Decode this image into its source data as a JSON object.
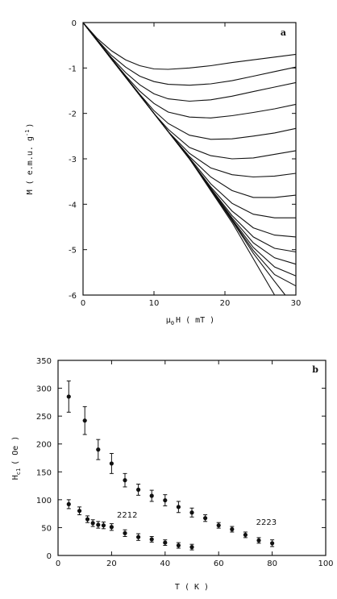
{
  "chart_data": [
    {
      "type": "line",
      "panel_letter": "a",
      "ylabel": "M ( e.m.u. g",
      "ylabel_sup": "-1",
      "ylabel_end": ")",
      "xlabel_main": "μ",
      "xlabel_sub": "0",
      "xlabel_rest": "H  ( mT )",
      "xlim": [
        0,
        30
      ],
      "ylim": [
        -6,
        0
      ],
      "x_ticks": [
        0,
        10,
        20,
        30
      ],
      "y_ticks": [
        0,
        -1,
        -2,
        -3,
        -4,
        -5,
        -6
      ],
      "x_tick_labels": [
        "0",
        "10",
        "20",
        "30"
      ],
      "y_tick_labels": [
        "0",
        "-1",
        "-2",
        "-3",
        "-4",
        "-5",
        "-6"
      ],
      "grid": false,
      "series": [
        {
          "x": [
            0,
            2,
            4,
            6,
            8,
            10,
            12,
            15,
            18,
            21,
            24,
            27,
            30
          ],
          "y": [
            0,
            -0.35,
            -0.62,
            -0.82,
            -0.95,
            -1.02,
            -1.03,
            -1.0,
            -0.95,
            -0.88,
            -0.82,
            -0.76,
            -0.7
          ]
        },
        {
          "x": [
            0,
            2,
            4,
            6,
            8,
            10,
            12,
            15,
            18,
            21,
            24,
            27,
            30
          ],
          "y": [
            0,
            -0.38,
            -0.72,
            -0.98,
            -1.18,
            -1.3,
            -1.36,
            -1.38,
            -1.35,
            -1.28,
            -1.18,
            -1.08,
            -0.98
          ]
        },
        {
          "x": [
            0,
            2,
            4,
            6,
            8,
            10,
            12,
            15,
            18,
            21,
            24,
            27,
            30
          ],
          "y": [
            0,
            -0.39,
            -0.77,
            -1.1,
            -1.37,
            -1.57,
            -1.68,
            -1.73,
            -1.7,
            -1.62,
            -1.52,
            -1.42,
            -1.32
          ]
        },
        {
          "x": [
            0,
            2,
            4,
            6,
            8,
            10,
            12,
            15,
            18,
            21,
            24,
            27,
            30
          ],
          "y": [
            0,
            -0.4,
            -0.79,
            -1.17,
            -1.51,
            -1.78,
            -1.97,
            -2.08,
            -2.1,
            -2.05,
            -1.98,
            -1.9,
            -1.8
          ]
        },
        {
          "x": [
            0,
            2,
            4,
            6,
            8,
            10,
            12,
            15,
            18,
            21,
            24,
            27,
            30
          ],
          "y": [
            0,
            -0.4,
            -0.8,
            -1.19,
            -1.58,
            -1.94,
            -2.22,
            -2.48,
            -2.57,
            -2.56,
            -2.5,
            -2.43,
            -2.33
          ]
        },
        {
          "x": [
            0,
            2,
            4,
            6,
            8,
            10,
            12,
            15,
            18,
            21,
            24,
            27,
            30
          ],
          "y": [
            0,
            -0.4,
            -0.8,
            -1.2,
            -1.6,
            -2.0,
            -2.35,
            -2.75,
            -2.93,
            -3.0,
            -2.98,
            -2.9,
            -2.82
          ]
        },
        {
          "x": [
            0,
            2,
            4,
            6,
            8,
            10,
            12,
            15,
            18,
            21,
            24,
            27,
            30
          ],
          "y": [
            0,
            -0.4,
            -0.8,
            -1.2,
            -1.6,
            -2.0,
            -2.4,
            -2.88,
            -3.2,
            -3.35,
            -3.4,
            -3.38,
            -3.32
          ]
        },
        {
          "x": [
            0,
            2,
            4,
            6,
            8,
            10,
            12,
            15,
            18,
            21,
            24,
            27,
            30
          ],
          "y": [
            0,
            -0.4,
            -0.8,
            -1.2,
            -1.6,
            -2.0,
            -2.4,
            -2.95,
            -3.4,
            -3.7,
            -3.85,
            -3.85,
            -3.8
          ]
        },
        {
          "x": [
            0,
            2,
            4,
            6,
            8,
            10,
            12,
            15,
            18,
            21,
            24,
            27,
            30
          ],
          "y": [
            0,
            -0.4,
            -0.8,
            -1.2,
            -1.6,
            -2.0,
            -2.4,
            -2.98,
            -3.55,
            -3.98,
            -4.22,
            -4.3,
            -4.3
          ]
        },
        {
          "x": [
            0,
            2,
            4,
            6,
            8,
            10,
            12,
            15,
            18,
            21,
            24,
            27,
            30
          ],
          "y": [
            0,
            -0.4,
            -0.8,
            -1.2,
            -1.6,
            -2.0,
            -2.4,
            -3.0,
            -3.62,
            -4.15,
            -4.52,
            -4.68,
            -4.72
          ]
        },
        {
          "x": [
            0,
            2,
            4,
            6,
            8,
            10,
            12,
            15,
            18,
            21,
            24,
            27,
            30
          ],
          "y": [
            0,
            -0.4,
            -0.8,
            -1.2,
            -1.6,
            -2.0,
            -2.4,
            -3.0,
            -3.65,
            -4.25,
            -4.72,
            -4.97,
            -5.05
          ]
        },
        {
          "x": [
            0,
            2,
            4,
            6,
            8,
            10,
            12,
            15,
            18,
            21,
            24,
            27,
            30
          ],
          "y": [
            0,
            -0.4,
            -0.8,
            -1.2,
            -1.6,
            -2.0,
            -2.4,
            -3.0,
            -3.66,
            -4.3,
            -4.85,
            -5.18,
            -5.32
          ]
        },
        {
          "x": [
            0,
            2,
            4,
            6,
            8,
            10,
            12,
            15,
            18,
            21,
            24,
            27,
            30
          ],
          "y": [
            0,
            -0.4,
            -0.8,
            -1.2,
            -1.6,
            -2.0,
            -2.4,
            -3.0,
            -3.67,
            -4.33,
            -4.95,
            -5.38,
            -5.58
          ]
        },
        {
          "x": [
            0,
            2,
            4,
            6,
            8,
            10,
            12,
            15,
            18,
            21,
            24,
            27,
            30
          ],
          "y": [
            0,
            -0.4,
            -0.8,
            -1.2,
            -1.6,
            -2.0,
            -2.4,
            -3.0,
            -3.68,
            -4.35,
            -5.02,
            -5.55,
            -5.8
          ]
        },
        {
          "x": [
            0,
            2,
            4,
            6,
            8,
            10,
            12,
            15,
            18,
            21,
            24,
            27,
            28.5
          ],
          "y": [
            0,
            -0.4,
            -0.8,
            -1.2,
            -1.6,
            -2.0,
            -2.4,
            -3.0,
            -3.68,
            -4.36,
            -5.08,
            -5.7,
            -6.0
          ]
        },
        {
          "x": [
            0,
            2,
            4,
            6,
            8,
            10,
            12,
            15,
            18,
            21,
            24,
            27
          ],
          "y": [
            0,
            -0.4,
            -0.8,
            -1.2,
            -1.6,
            -2.0,
            -2.4,
            -3.0,
            -3.7,
            -4.4,
            -5.2,
            -6.0
          ]
        }
      ]
    },
    {
      "type": "scatter",
      "panel_letter": "b",
      "ylabel_main": "H",
      "ylabel_sub": "c1",
      "ylabel_rest": "( Oe )",
      "xlabel": "T  ( K )",
      "xlim": [
        0,
        100
      ],
      "ylim": [
        0,
        350
      ],
      "x_ticks": [
        0,
        20,
        40,
        60,
        80,
        100
      ],
      "y_ticks": [
        0,
        50,
        100,
        150,
        200,
        250,
        300,
        350
      ],
      "x_tick_labels": [
        "0",
        "20",
        "40",
        "60",
        "80",
        "100"
      ],
      "y_tick_labels": [
        "0",
        "50",
        "100",
        "150",
        "200",
        "250",
        "300",
        "350"
      ],
      "grid": false,
      "annotations": [
        {
          "text": "2212",
          "x": 22,
          "y": 68
        },
        {
          "text": "2223",
          "x": 74,
          "y": 55
        }
      ],
      "series": [
        {
          "marker": "circle",
          "x": [
            4,
            10,
            15,
            20,
            25,
            30,
            35,
            40,
            45,
            50,
            55,
            60,
            65,
            70,
            75,
            80
          ],
          "y": [
            285,
            242,
            190,
            165,
            135,
            118,
            107,
            99,
            87,
            77,
            67,
            54,
            47,
            37,
            27,
            22
          ],
          "err": [
            28,
            25,
            18,
            18,
            12,
            10,
            10,
            10,
            10,
            8,
            6,
            5,
            5,
            5,
            5,
            6
          ]
        },
        {
          "marker": "circle",
          "x": [
            4,
            8,
            11,
            13,
            15,
            17,
            20,
            25,
            30,
            35,
            40,
            45,
            50
          ],
          "y": [
            92,
            80,
            65,
            58,
            55,
            54,
            51,
            40,
            33,
            29,
            23,
            18,
            15
          ],
          "err": [
            8,
            7,
            6,
            6,
            6,
            6,
            6,
            6,
            6,
            5,
            5,
            5,
            5
          ]
        }
      ]
    }
  ]
}
